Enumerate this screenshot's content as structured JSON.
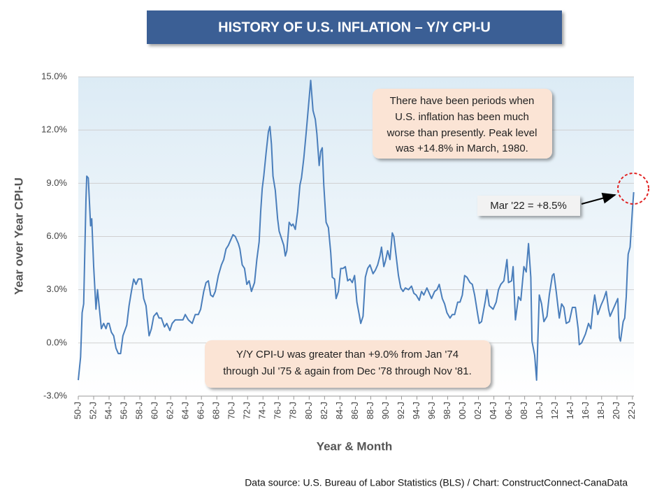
{
  "chart_data": {
    "type": "line",
    "title": "HISTORY OF U.S. INFLATION – Y/Y CPI-U",
    "y_label": "Year over Year CPI-U",
    "x_label": "Year & Month",
    "source": "Data source: U.S. Bureau of Labor Statistics (BLS) / Chart: ConstructConnect-CanaData",
    "annotations": [
      [
        "There have been periods when",
        "U.S. inflation has been much",
        "worse than presently. Peak level",
        "was +14.8% in March, 1980."
      ],
      [
        "Mar '22 = +8.5%"
      ],
      [
        "Y/Y CPI-U was greater than +9.0% from Jan '74",
        "through Jul '75 & again from Dec '78 through Nov '81."
      ]
    ],
    "color": "#4a7ebb",
    "grid": true,
    "ylim": [
      -3,
      15
    ],
    "yticks": [
      {
        "value": -3,
        "label": "-3.0%"
      },
      {
        "value": 0,
        "label": "0.0%"
      },
      {
        "value": 3,
        "label": "3.0%"
      },
      {
        "value": 6,
        "label": "6.0%"
      },
      {
        "value": 9,
        "label": "9.0%"
      },
      {
        "value": 12,
        "label": "12.0%"
      },
      {
        "value": 15,
        "label": "15.0%"
      }
    ],
    "xlim": [
      1950,
      2022.2
    ],
    "xticks": [
      {
        "value": 1950,
        "label": "50-J"
      },
      {
        "value": 1952,
        "label": "52-J"
      },
      {
        "value": 1954,
        "label": "54-J"
      },
      {
        "value": 1956,
        "label": "56-J"
      },
      {
        "value": 1958,
        "label": "58-J"
      },
      {
        "value": 1960,
        "label": "60-J"
      },
      {
        "value": 1962,
        "label": "62-J"
      },
      {
        "value": 1964,
        "label": "64-J"
      },
      {
        "value": 1966,
        "label": "66-J"
      },
      {
        "value": 1968,
        "label": "68-J"
      },
      {
        "value": 1970,
        "label": "70-J"
      },
      {
        "value": 1972,
        "label": "72-J"
      },
      {
        "value": 1974,
        "label": "74-J"
      },
      {
        "value": 1976,
        "label": "76-J"
      },
      {
        "value": 1978,
        "label": "78-J"
      },
      {
        "value": 1980,
        "label": "80-J"
      },
      {
        "value": 1982,
        "label": "82-J"
      },
      {
        "value": 1984,
        "label": "84-J"
      },
      {
        "value": 1986,
        "label": "86-J"
      },
      {
        "value": 1988,
        "label": "88-J"
      },
      {
        "value": 1990,
        "label": "90-J"
      },
      {
        "value": 1992,
        "label": "92-J"
      },
      {
        "value": 1994,
        "label": "94-J"
      },
      {
        "value": 1996,
        "label": "96-J"
      },
      {
        "value": 1998,
        "label": "98-J"
      },
      {
        "value": 2000,
        "label": "00-J"
      },
      {
        "value": 2002,
        "label": "02-J"
      },
      {
        "value": 2004,
        "label": "04-J"
      },
      {
        "value": 2006,
        "label": "06-J"
      },
      {
        "value": 2008,
        "label": "08-J"
      },
      {
        "value": 2010,
        "label": "10-J"
      },
      {
        "value": 2012,
        "label": "12-J"
      },
      {
        "value": 2014,
        "label": "14-J"
      },
      {
        "value": 2016,
        "label": "16-J"
      },
      {
        "value": 2018,
        "label": "18-J"
      },
      {
        "value": 2020,
        "label": "20-J"
      },
      {
        "value": 2022,
        "label": "22-J"
      }
    ],
    "x": [
      1950.0,
      1950.3,
      1950.5,
      1950.7,
      1951.0,
      1951.1,
      1951.3,
      1951.6,
      1951.75,
      1952.0,
      1952.3,
      1952.5,
      1952.75,
      1953.0,
      1953.3,
      1953.6,
      1953.8,
      1954.0,
      1954.3,
      1954.6,
      1954.9,
      1955.2,
      1955.5,
      1955.8,
      1956.3,
      1956.6,
      1956.9,
      1957.2,
      1957.5,
      1957.8,
      1958.2,
      1958.5,
      1958.8,
      1959.2,
      1959.5,
      1959.8,
      1960.2,
      1960.5,
      1960.8,
      1961.2,
      1961.5,
      1961.9,
      1962.2,
      1962.6,
      1962.9,
      1963.2,
      1963.6,
      1963.9,
      1964.3,
      1964.8,
      1965.2,
      1965.6,
      1965.9,
      1966.3,
      1966.6,
      1966.9,
      1967.2,
      1967.5,
      1967.8,
      1968.2,
      1968.6,
      1968.9,
      1969.2,
      1969.5,
      1969.9,
      1970.1,
      1970.4,
      1970.8,
      1971.0,
      1971.3,
      1971.6,
      1971.9,
      1972.2,
      1972.5,
      1972.9,
      1973.2,
      1973.5,
      1973.7,
      1973.9,
      1974.1,
      1974.4,
      1974.7,
      1974.9,
      1975.1,
      1975.3,
      1975.6,
      1975.9,
      1976.1,
      1976.4,
      1976.7,
      1976.9,
      1977.1,
      1977.4,
      1977.7,
      1977.9,
      1978.2,
      1978.5,
      1978.8,
      1979.0,
      1979.3,
      1979.6,
      1979.9,
      1980.2,
      1980.5,
      1980.8,
      1981.0,
      1981.3,
      1981.5,
      1981.7,
      1981.9,
      1982.2,
      1982.5,
      1982.8,
      1983.0,
      1983.3,
      1983.5,
      1983.8,
      1984.1,
      1984.4,
      1984.7,
      1985.0,
      1985.3,
      1985.6,
      1985.9,
      1986.2,
      1986.5,
      1986.7,
      1987.0,
      1987.3,
      1987.6,
      1987.9,
      1988.3,
      1988.6,
      1988.9,
      1989.2,
      1989.4,
      1989.7,
      1989.9,
      1990.2,
      1990.5,
      1990.8,
      1991.0,
      1991.3,
      1991.6,
      1991.9,
      1992.2,
      1992.5,
      1992.9,
      1993.3,
      1993.6,
      1993.9,
      1994.3,
      1994.6,
      1994.9,
      1995.3,
      1995.6,
      1995.9,
      1996.3,
      1996.6,
      1996.9,
      1997.3,
      1997.6,
      1997.9,
      1998.3,
      1998.6,
      1998.9,
      1999.3,
      1999.6,
      1999.9,
      2000.2,
      2000.5,
      2000.9,
      2001.2,
      2001.5,
      2001.9,
      2002.1,
      2002.4,
      2002.9,
      2003.1,
      2003.4,
      2003.9,
      2004.3,
      2004.6,
      2004.9,
      2005.3,
      2005.7,
      2005.9,
      2006.3,
      2006.5,
      2006.8,
      2007.2,
      2007.5,
      2007.9,
      2008.2,
      2008.5,
      2008.8,
      2008.95,
      2009.3,
      2009.55,
      2009.9,
      2010.2,
      2010.5,
      2010.9,
      2011.2,
      2011.6,
      2011.8,
      2012.1,
      2012.5,
      2012.8,
      2013.1,
      2013.4,
      2013.8,
      2014.2,
      2014.6,
      2014.95,
      2015.1,
      2015.4,
      2015.9,
      2016.3,
      2016.6,
      2016.9,
      2017.1,
      2017.5,
      2017.9,
      2018.3,
      2018.6,
      2018.9,
      2019.1,
      2019.4,
      2019.9,
      2020.1,
      2020.3,
      2020.45,
      2020.8,
      2021.0,
      2021.2,
      2021.35,
      2021.45,
      2021.7,
      2021.9,
      2022.0,
      2022.17
    ],
    "values": [
      -2.1,
      -0.8,
      1.7,
      2.2,
      8.1,
      9.4,
      9.3,
      6.6,
      7.0,
      4.3,
      1.9,
      3.0,
      1.9,
      0.8,
      1.1,
      0.8,
      1.1,
      1.1,
      0.6,
      0.4,
      -0.3,
      -0.6,
      -0.6,
      0.4,
      1.0,
      2.1,
      2.9,
      3.6,
      3.3,
      3.6,
      3.6,
      2.5,
      2.1,
      0.4,
      0.8,
      1.5,
      1.7,
      1.4,
      1.4,
      0.9,
      1.1,
      0.7,
      1.1,
      1.3,
      1.3,
      1.3,
      1.3,
      1.6,
      1.3,
      1.1,
      1.6,
      1.6,
      1.9,
      2.9,
      3.4,
      3.5,
      2.7,
      2.6,
      2.9,
      3.8,
      4.4,
      4.7,
      5.3,
      5.5,
      5.9,
      6.1,
      6.0,
      5.6,
      5.3,
      4.4,
      4.2,
      3.3,
      3.5,
      2.9,
      3.4,
      4.7,
      5.7,
      7.4,
      8.7,
      9.4,
      10.7,
      11.9,
      12.2,
      11.2,
      9.4,
      8.6,
      7.0,
      6.3,
      5.9,
      5.5,
      4.9,
      5.2,
      6.8,
      6.6,
      6.7,
      6.4,
      7.4,
      8.9,
      9.3,
      10.4,
      11.8,
      13.3,
      14.8,
      13.1,
      12.6,
      11.8,
      10.0,
      10.8,
      11.0,
      8.9,
      6.8,
      6.5,
      5.1,
      3.7,
      3.6,
      2.5,
      2.9,
      4.2,
      4.2,
      4.3,
      3.5,
      3.6,
      3.4,
      3.8,
      2.3,
      1.6,
      1.1,
      1.5,
      3.7,
      4.2,
      4.4,
      3.9,
      4.1,
      4.4,
      4.9,
      5.4,
      4.3,
      4.6,
      5.2,
      4.7,
      6.2,
      6.0,
      4.9,
      3.8,
      3.1,
      2.9,
      3.1,
      3.0,
      3.2,
      2.8,
      2.7,
      2.4,
      2.9,
      2.7,
      3.1,
      2.8,
      2.5,
      2.9,
      3.0,
      3.3,
      2.5,
      2.2,
      1.7,
      1.4,
      1.6,
      1.6,
      2.3,
      2.3,
      2.7,
      3.8,
      3.7,
      3.4,
      3.3,
      2.7,
      1.6,
      1.1,
      1.2,
      2.4,
      3.0,
      2.1,
      1.9,
      2.3,
      3.0,
      3.3,
      3.5,
      4.7,
      3.4,
      3.5,
      4.3,
      1.3,
      2.6,
      2.4,
      4.3,
      4.0,
      5.6,
      3.7,
      0.1,
      -0.7,
      -2.1,
      2.7,
      2.2,
      1.2,
      1.5,
      2.7,
      3.8,
      3.9,
      2.9,
      1.4,
      2.2,
      2.0,
      1.1,
      1.2,
      2.0,
      2.0,
      0.8,
      -0.1,
      0.0,
      0.5,
      1.1,
      0.8,
      2.1,
      2.7,
      1.6,
      2.1,
      2.5,
      2.9,
      1.9,
      1.5,
      1.8,
      2.3,
      2.5,
      0.3,
      0.1,
      1.2,
      1.4,
      2.6,
      4.2,
      5.0,
      5.4,
      6.8,
      7.5,
      8.5
    ]
  }
}
